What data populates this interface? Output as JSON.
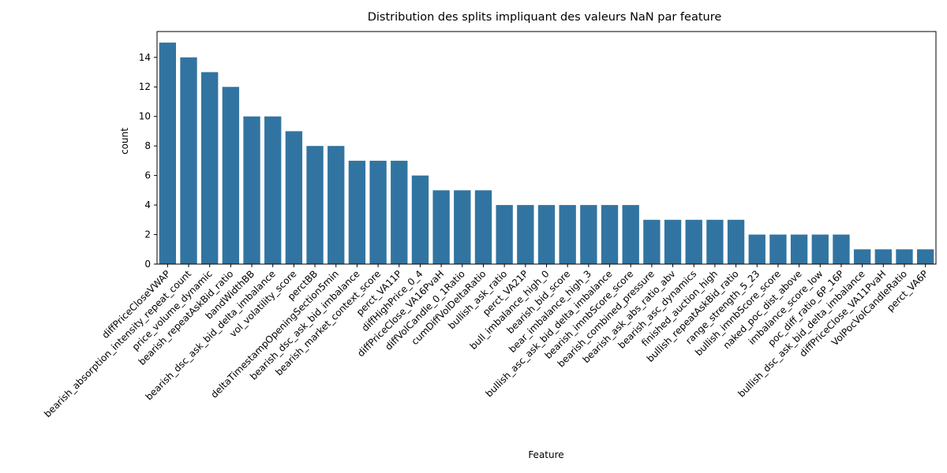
{
  "chart_data": {
    "type": "bar",
    "title": "Distribution des splits impliquant des valeurs NaN par feature",
    "xlabel": "Feature",
    "ylabel": "count",
    "ylim": [
      0,
      15.75
    ],
    "yticks": [
      0,
      2,
      4,
      6,
      8,
      10,
      12,
      14
    ],
    "grid": false,
    "bar_color": "#3274a1",
    "categories": [
      "diffPriceCloseVWAP",
      "bearish_absorption_intensity_repeat_count",
      "price_volume_dynamic",
      "bearish_repeatAskBid_ratio",
      "bandWidthBB",
      "bearish_dsc_ask_bid_delta_imbalance",
      "vol_volatility_score",
      "perctBB",
      "deltaTimestampOpeningSection5min",
      "bearish_dsc_ask_bid_imbalance",
      "bearish_market_context_score",
      "perct_VA11P",
      "diffHighPrice_0_4",
      "diffPriceClose_VA16PvaH",
      "diffVolCandle_0_1Ratio",
      "cumDiffVolDeltaRatio",
      "bullish_ask_ratio",
      "perct_VA21P",
      "bull_imbalance_high_0",
      "bearish_bid_score",
      "bear_imbalance_high_3",
      "bullish_asc_ask_bid_delta_imbalance",
      "bearish_imnbScore_score",
      "bearish_combined_pressure",
      "bearish_ask_abs_ratio_abv",
      "bearish_asc_dynamics",
      "finished_auction_high",
      "bullish_repeatAskBid_ratio",
      "range_strength_5_23",
      "bullish_imnbScore_score",
      "naked_poc_dist_above",
      "imbalance_score_low",
      "poc_diff_ratio_6P_16P",
      "bullish_dsc_ask_bid_delta_imbalance",
      "diffPriceClose_VA11PvaH",
      "VolPocVolCandleRatio",
      "perct_VA6P"
    ],
    "values": [
      15,
      14,
      13,
      12,
      10,
      10,
      9,
      8,
      8,
      7,
      7,
      7,
      6,
      5,
      5,
      5,
      4,
      4,
      4,
      4,
      4,
      4,
      4,
      3,
      3,
      3,
      3,
      3,
      2,
      2,
      2,
      2,
      2,
      1,
      1,
      1,
      1
    ]
  }
}
